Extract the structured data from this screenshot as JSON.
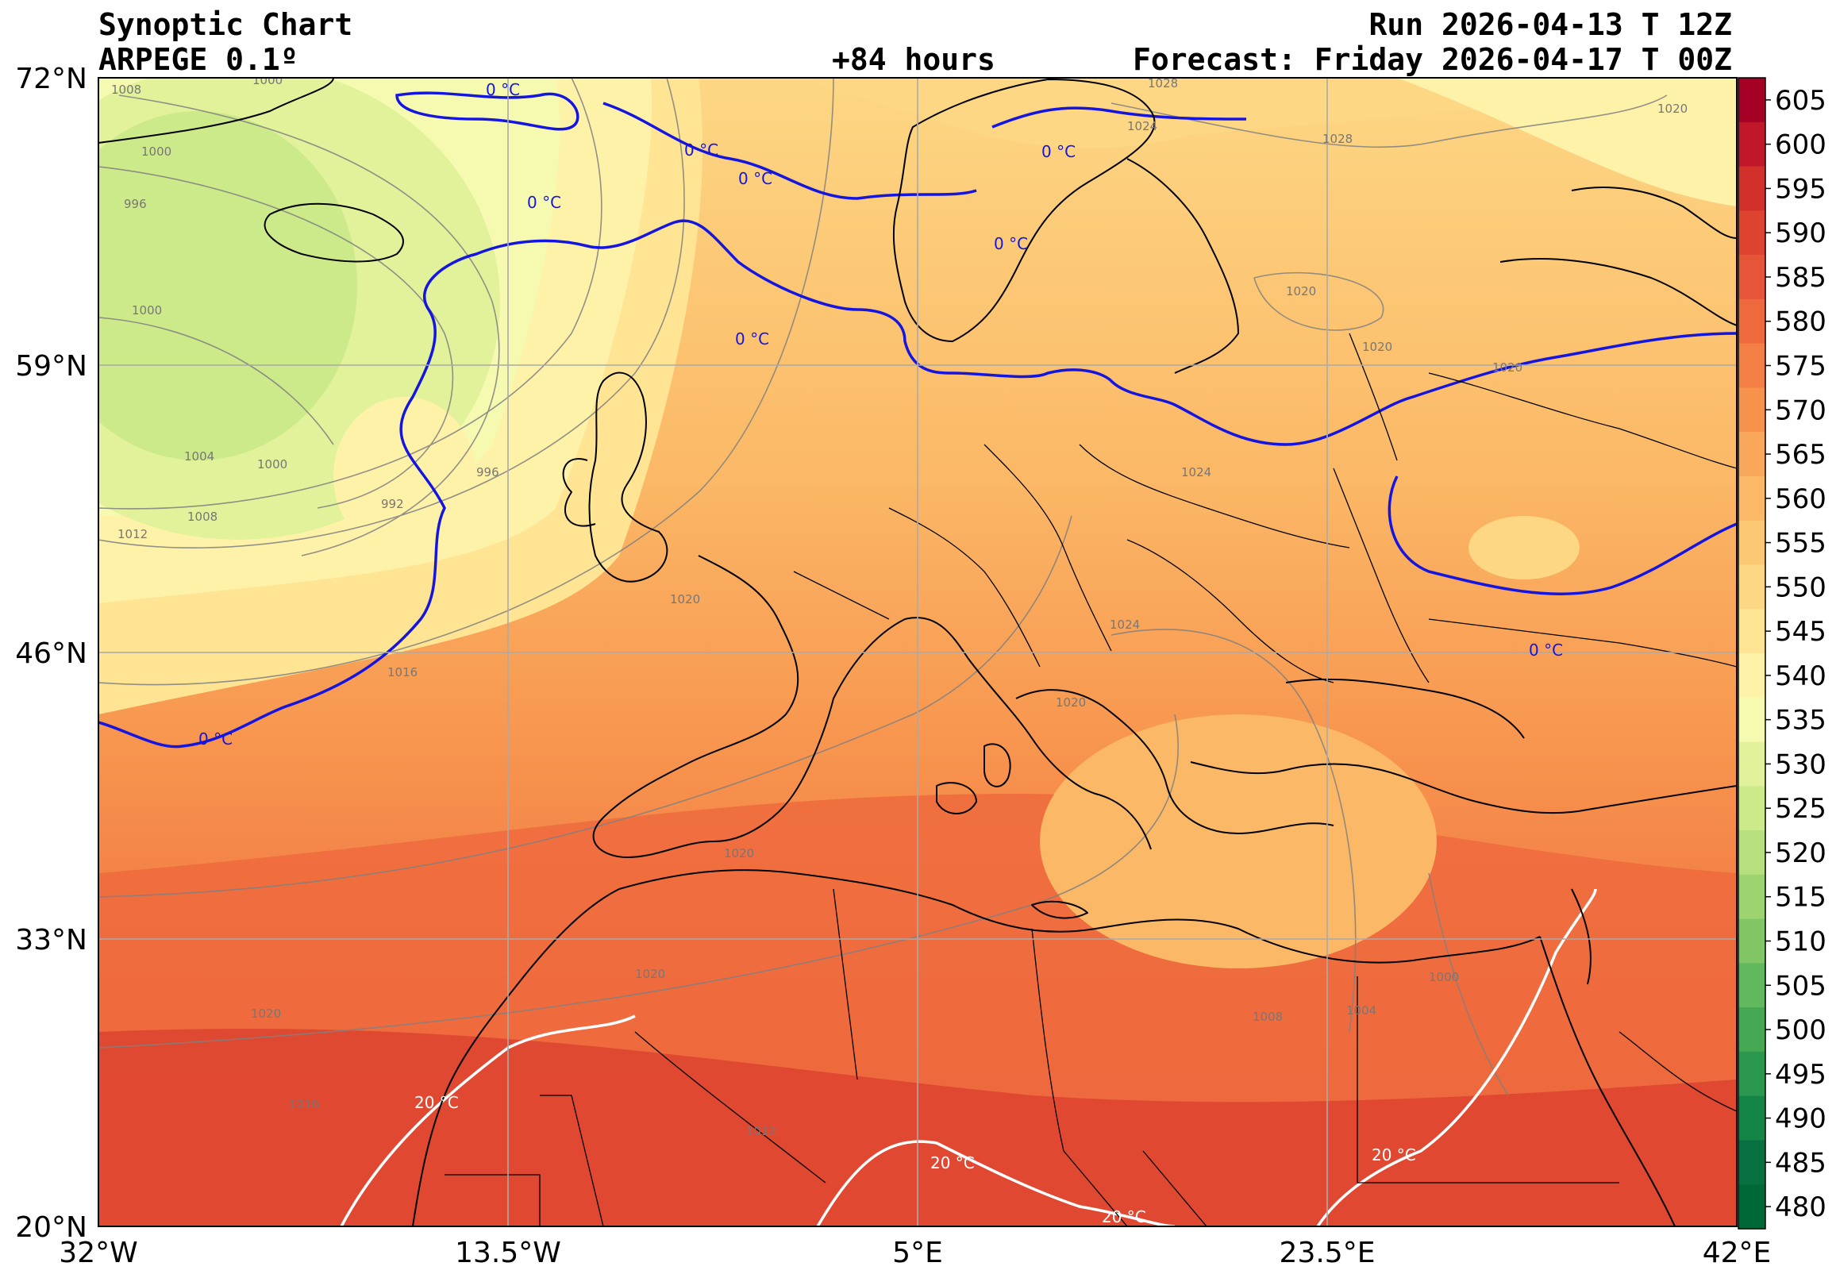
{
  "header": {
    "title": "Synoptic Chart",
    "model": "ARPEGE 0.1º",
    "lead": "+84 hours",
    "run": "Run 2026-04-13 T 12Z",
    "forecast": "Forecast: Friday 2026-04-17 T 00Z"
  },
  "map": {
    "lon_ticks": [
      "32°W",
      "13.5°W",
      "5°E",
      "23.5°E",
      "42°E"
    ],
    "lat_ticks": [
      "72°N",
      "59°N",
      "46°N",
      "33°N",
      "20°N"
    ],
    "lon_range": [
      -32,
      42
    ],
    "lat_range": [
      20,
      72
    ],
    "isobar_labels": [
      "1008",
      "1000",
      "1000",
      "996",
      "1000",
      "1004",
      "1000",
      "992",
      "996",
      "1008",
      "1012",
      "1016",
      "1020",
      "1024",
      "1028",
      "1028",
      "1020",
      "1020",
      "1020",
      "1020",
      "1024",
      "1024",
      "1020",
      "1020",
      "1020",
      "1012",
      "1020",
      "1008",
      "1004",
      "1000",
      "1016"
    ],
    "isotherm_0_label": "0 °C",
    "isotherm_20_label": "20 °C",
    "colors": {
      "isotherm_0": "#1515e0",
      "isotherm_20": "#ffffff",
      "coast_border": "#000000",
      "isobar": "#808080",
      "grid": "#aaaaaa"
    }
  },
  "colorbar": {
    "labels": [
      "605",
      "600",
      "595",
      "590",
      "585",
      "580",
      "575",
      "570",
      "565",
      "560",
      "555",
      "550",
      "545",
      "540",
      "535",
      "530",
      "525",
      "520",
      "515",
      "510",
      "505",
      "500",
      "495",
      "490",
      "485",
      "480"
    ],
    "colors": [
      "#a50026",
      "#c0172b",
      "#d1302b",
      "#dd432f",
      "#e65538",
      "#ee6a3d",
      "#f47f44",
      "#f7924d",
      "#f9a75a",
      "#fbb866",
      "#fcc873",
      "#fdd784",
      "#fee493",
      "#fef2a9",
      "#f5fab0",
      "#e2f29a",
      "#cdea8a",
      "#b6e07d",
      "#9dd46f",
      "#80c664",
      "#62b85d",
      "#45a855",
      "#29974e",
      "#158547",
      "#067040",
      "#006837"
    ]
  }
}
